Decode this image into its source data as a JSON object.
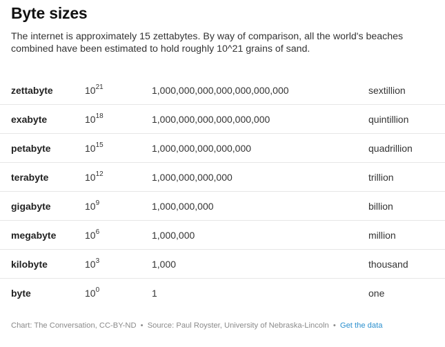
{
  "header": {
    "title": "Byte sizes",
    "subtitle": "The internet is approximately 15 zettabytes. By way of comparison, all the world's beaches combined have been estimated to hold roughly 10^21 grains of sand."
  },
  "table": {
    "rows": [
      {
        "name": "zettabyte",
        "base": "10",
        "exp": "21",
        "full": "1,000,000,000,000,000,000,000",
        "word": "sextillion"
      },
      {
        "name": "exabyte",
        "base": "10",
        "exp": "18",
        "full": "1,000,000,000,000,000,000",
        "word": "quintillion"
      },
      {
        "name": "petabyte",
        "base": "10",
        "exp": "15",
        "full": "1,000,000,000,000,000",
        "word": "quadrillion"
      },
      {
        "name": "terabyte",
        "base": "10",
        "exp": "12",
        "full": "1,000,000,000,000",
        "word": "trillion"
      },
      {
        "name": "gigabyte",
        "base": "10",
        "exp": "9",
        "full": "1,000,000,000",
        "word": "billion"
      },
      {
        "name": "megabyte",
        "base": "10",
        "exp": "6",
        "full": "1,000,000",
        "word": "million"
      },
      {
        "name": "kilobyte",
        "base": "10",
        "exp": "3",
        "full": "1,000",
        "word": "thousand"
      },
      {
        "name": "byte",
        "base": "10",
        "exp": "0",
        "full": "1",
        "word": "one"
      }
    ]
  },
  "footer": {
    "chart_credit": "Chart: The Conversation, CC-BY-ND",
    "separator": "•",
    "source": "Source: Paul Royster, University of Nebraska-Lincoln",
    "link_label": "Get the data"
  }
}
